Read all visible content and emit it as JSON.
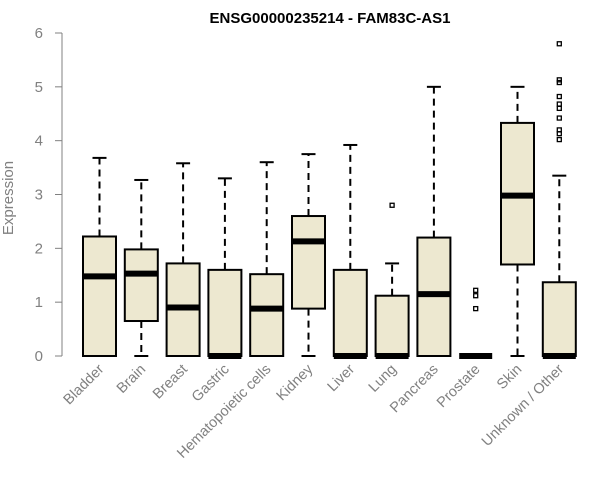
{
  "chart_data": {
    "type": "boxplot",
    "title": "ENSG00000235214 - FAM83C-AS1",
    "xlabel": "",
    "ylabel": "Expression",
    "ylim": [
      0,
      6
    ],
    "yticks": [
      "0",
      "1",
      "2",
      "3",
      "4",
      "5",
      "6"
    ],
    "grid": false,
    "legend": "none",
    "colors": {
      "box_fill": "#ede8d0",
      "stroke": "#000000",
      "axis_text": "#808080"
    },
    "categories": [
      "Bladder",
      "Brain",
      "Breast",
      "Gastric",
      "Hematopoietic cells",
      "Kidney",
      "Liver",
      "Lung",
      "Pancreas",
      "Prostate",
      "Skin",
      "Unknown / Other"
    ],
    "boxes": [
      {
        "whisker_low": 0,
        "q1": 0,
        "median": 1.48,
        "q3": 2.22,
        "whisker_high": 3.68,
        "outliers": []
      },
      {
        "whisker_low": 0,
        "q1": 0.65,
        "median": 1.53,
        "q3": 1.98,
        "whisker_high": 3.27,
        "outliers": []
      },
      {
        "whisker_low": 0,
        "q1": 0,
        "median": 0.9,
        "q3": 1.72,
        "whisker_high": 3.58,
        "outliers": []
      },
      {
        "whisker_low": 0,
        "q1": 0,
        "median": 0.0,
        "q3": 1.6,
        "whisker_high": 3.3,
        "outliers": []
      },
      {
        "whisker_low": 0,
        "q1": 0,
        "median": 0.88,
        "q3": 1.52,
        "whisker_high": 3.6,
        "outliers": []
      },
      {
        "whisker_low": 0,
        "q1": 0.88,
        "median": 2.13,
        "q3": 2.6,
        "whisker_high": 3.75,
        "outliers": []
      },
      {
        "whisker_low": 0,
        "q1": 0,
        "median": 0.0,
        "q3": 1.6,
        "whisker_high": 3.92,
        "outliers": []
      },
      {
        "whisker_low": 0,
        "q1": 0,
        "median": 0.0,
        "q3": 1.12,
        "whisker_high": 1.72,
        "outliers": [
          2.8
        ]
      },
      {
        "whisker_low": 0,
        "q1": 0,
        "median": 1.15,
        "q3": 2.2,
        "whisker_high": 5.0,
        "outliers": []
      },
      {
        "whisker_low": 0,
        "q1": 0,
        "median": 0.0,
        "q3": 0.0,
        "whisker_high": 0.0,
        "outliers": [
          0.88,
          1.12,
          1.22
        ]
      },
      {
        "whisker_low": 0,
        "q1": 1.7,
        "median": 2.98,
        "q3": 4.33,
        "whisker_high": 5.0,
        "outliers": []
      },
      {
        "whisker_low": 0,
        "q1": 0,
        "median": 0.0,
        "q3": 1.37,
        "whisker_high": 3.35,
        "outliers": [
          4.02,
          4.13,
          4.2,
          4.42,
          4.6,
          4.68,
          4.82,
          5.08,
          5.13,
          5.8
        ]
      }
    ]
  }
}
